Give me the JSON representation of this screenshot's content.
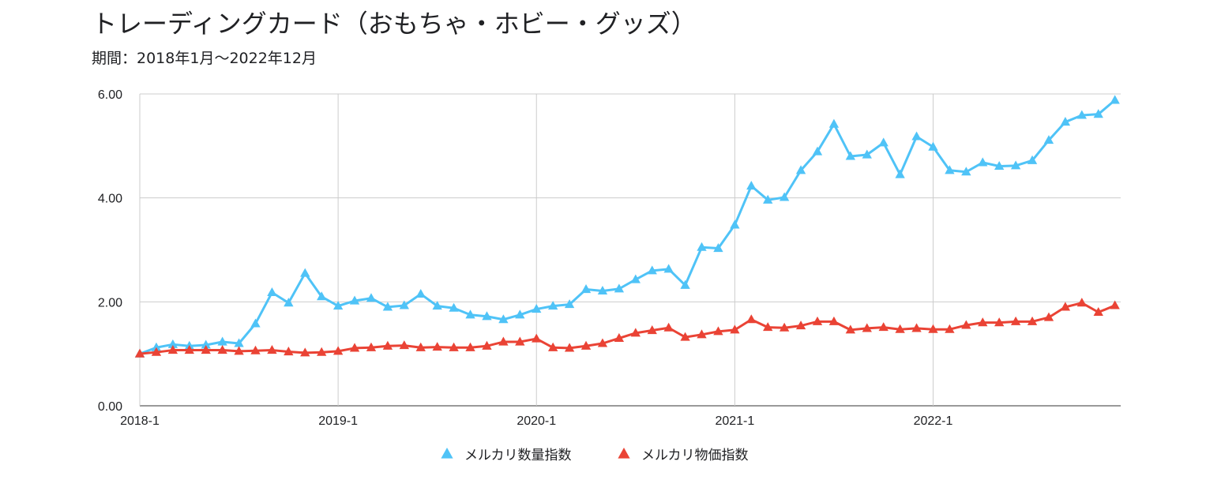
{
  "title": "トレーディングカード（おもちゃ・ホビー・グッズ）",
  "subtitle": "期間：2018年1月〜2022年12月",
  "chart_data": {
    "type": "line",
    "title": "トレーディングカード（おもちゃ・ホビー・グッズ）",
    "subtitle": "期間：2018年1月〜2022年12月",
    "xlabel": "",
    "ylabel": "",
    "ylim": [
      0,
      6
    ],
    "yticks": [
      "0.00",
      "2.00",
      "4.00",
      "6.00"
    ],
    "xticks": [
      "2018-1",
      "2019-1",
      "2020-1",
      "2021-1",
      "2022-1"
    ],
    "x": [
      "2018-1",
      "2018-2",
      "2018-3",
      "2018-4",
      "2018-5",
      "2018-6",
      "2018-7",
      "2018-8",
      "2018-9",
      "2018-10",
      "2018-11",
      "2018-12",
      "2019-1",
      "2019-2",
      "2019-3",
      "2019-4",
      "2019-5",
      "2019-6",
      "2019-7",
      "2019-8",
      "2019-9",
      "2019-10",
      "2019-11",
      "2019-12",
      "2020-1",
      "2020-2",
      "2020-3",
      "2020-4",
      "2020-5",
      "2020-6",
      "2020-7",
      "2020-8",
      "2020-9",
      "2020-10",
      "2020-11",
      "2020-12",
      "2021-1",
      "2021-2",
      "2021-3",
      "2021-4",
      "2021-5",
      "2021-6",
      "2021-7",
      "2021-8",
      "2021-9",
      "2021-10",
      "2021-11",
      "2021-12",
      "2022-1",
      "2022-2",
      "2022-3",
      "2022-4",
      "2022-5",
      "2022-6",
      "2022-7",
      "2022-8",
      "2022-9",
      "2022-10",
      "2022-11",
      "2022-12"
    ],
    "grid": true,
    "legend_position": "bottom",
    "series": [
      {
        "name": "メルカリ数量指数",
        "color": "#4fc3f7",
        "marker": "triangle",
        "values": [
          1.0,
          1.12,
          1.18,
          1.15,
          1.17,
          1.23,
          1.2,
          1.58,
          2.18,
          1.98,
          2.55,
          2.1,
          1.92,
          2.02,
          2.07,
          1.9,
          1.93,
          2.15,
          1.92,
          1.88,
          1.75,
          1.72,
          1.66,
          1.75,
          1.86,
          1.92,
          1.95,
          2.24,
          2.21,
          2.25,
          2.43,
          2.6,
          2.63,
          2.32,
          3.05,
          3.03,
          3.48,
          4.23,
          3.96,
          4.01,
          4.53,
          4.89,
          5.42,
          4.8,
          4.83,
          5.06,
          4.45,
          5.18,
          4.98,
          4.53,
          4.5,
          4.68,
          4.61,
          4.62,
          4.72,
          5.11,
          5.46,
          5.59,
          5.61,
          5.88
        ]
      },
      {
        "name": "メルカリ物価指数",
        "color": "#ea4335",
        "marker": "triangle",
        "values": [
          1.0,
          1.03,
          1.07,
          1.07,
          1.07,
          1.07,
          1.05,
          1.06,
          1.07,
          1.04,
          1.02,
          1.03,
          1.05,
          1.11,
          1.12,
          1.15,
          1.16,
          1.12,
          1.13,
          1.12,
          1.12,
          1.15,
          1.23,
          1.23,
          1.29,
          1.12,
          1.11,
          1.15,
          1.2,
          1.3,
          1.4,
          1.45,
          1.5,
          1.32,
          1.37,
          1.43,
          1.46,
          1.66,
          1.51,
          1.5,
          1.54,
          1.62,
          1.62,
          1.46,
          1.49,
          1.51,
          1.47,
          1.49,
          1.47,
          1.47,
          1.55,
          1.6,
          1.6,
          1.62,
          1.62,
          1.7,
          1.9,
          1.98,
          1.8,
          1.93
        ]
      }
    ]
  }
}
